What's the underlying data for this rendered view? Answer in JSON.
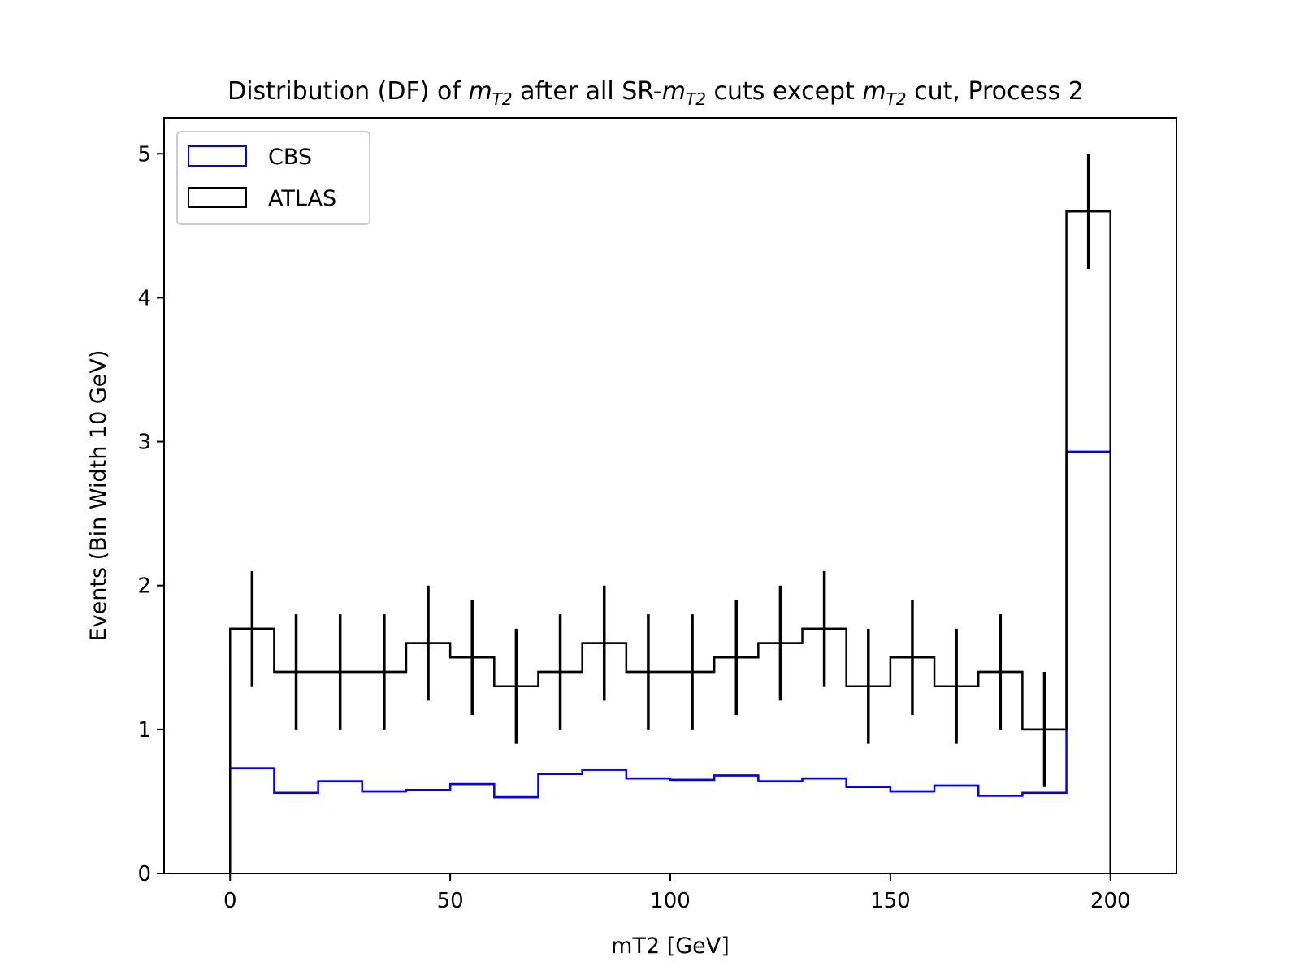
{
  "chart_data": {
    "type": "bar",
    "title": {
      "prefix": "Distribution (DF) of ",
      "var_base": "m",
      "var_sub": "T2",
      "mid1": " after all SR-",
      "mid2": " cuts except ",
      "suffix": " cut, Process 2"
    },
    "xlabel": "mT2 [GeV]",
    "ylabel": "Events (Bin Width 10 GeV)",
    "xlim": [
      -15,
      215
    ],
    "ylim": [
      0,
      5.25
    ],
    "xticks": [
      0,
      50,
      100,
      150,
      200
    ],
    "yticks": [
      0,
      1,
      2,
      3,
      4,
      5
    ],
    "bin_edges": [
      0,
      10,
      20,
      30,
      40,
      50,
      60,
      70,
      80,
      90,
      100,
      110,
      120,
      130,
      140,
      150,
      160,
      170,
      180,
      190,
      200
    ],
    "legend_position": "upper-left",
    "grid": false,
    "series": [
      {
        "name": "CBS",
        "histtype": "step",
        "color": "#0000ff",
        "values": [
          0.73,
          0.56,
          0.64,
          0.57,
          0.58,
          0.62,
          0.53,
          0.69,
          0.72,
          0.66,
          0.65,
          0.68,
          0.64,
          0.66,
          0.6,
          0.57,
          0.61,
          0.54,
          0.56,
          2.93
        ]
      },
      {
        "name": "ATLAS",
        "histtype": "step",
        "color": "#000000",
        "values": [
          1.7,
          1.4,
          1.4,
          1.4,
          1.6,
          1.5,
          1.3,
          1.4,
          1.6,
          1.4,
          1.4,
          1.5,
          1.6,
          1.7,
          1.3,
          1.5,
          1.3,
          1.4,
          1.0,
          4.6
        ],
        "errors": [
          0.4,
          0.4,
          0.4,
          0.4,
          0.4,
          0.4,
          0.4,
          0.4,
          0.4,
          0.4,
          0.4,
          0.4,
          0.4,
          0.4,
          0.4,
          0.4,
          0.4,
          0.4,
          0.4,
          0.4
        ]
      }
    ]
  }
}
